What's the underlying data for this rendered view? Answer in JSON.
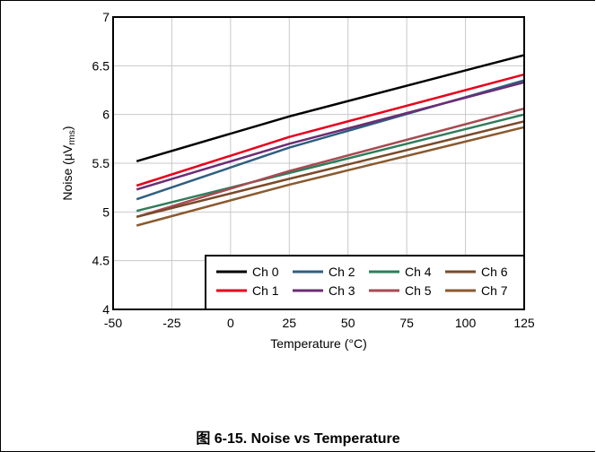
{
  "caption": "图 6-15. Noise vs Temperature",
  "chart_data": {
    "type": "line",
    "title": "",
    "xlabel": "Temperature (°C)",
    "ylabel_main": "Noise (",
    "ylabel_mu": "µ",
    "ylabel_V": "V",
    "ylabel_sub": "rms",
    "ylabel_end": ")",
    "xlim": [
      -50,
      125
    ],
    "ylim": [
      4,
      7
    ],
    "x_ticks": [
      -50,
      -25,
      0,
      25,
      50,
      75,
      100,
      125
    ],
    "y_ticks": [
      4,
      4.5,
      5,
      5.5,
      6,
      6.5,
      7
    ],
    "x_tick_labels": [
      "-50",
      "-25",
      "0",
      "25",
      "50",
      "75",
      "100",
      "125"
    ],
    "y_tick_labels": [
      "4",
      "4.5",
      "5",
      "5.5",
      "6",
      "6.5",
      "7"
    ],
    "grid": true,
    "legend_placement": "bottom-right",
    "series": [
      {
        "name": "Ch 0",
        "color": "#000000",
        "x": [
          -40,
          25,
          125
        ],
        "y": [
          5.52,
          5.98,
          6.61
        ]
      },
      {
        "name": "Ch 1",
        "color": "#e8001c",
        "x": [
          -40,
          25,
          125
        ],
        "y": [
          5.27,
          5.77,
          6.41
        ]
      },
      {
        "name": "Ch 2",
        "color": "#2f5f80",
        "x": [
          -40,
          25,
          125
        ],
        "y": [
          5.13,
          5.66,
          6.35
        ]
      },
      {
        "name": "Ch 3",
        "color": "#6b2d74",
        "x": [
          -40,
          25,
          125
        ],
        "y": [
          5.23,
          5.7,
          6.33
        ]
      },
      {
        "name": "Ch 4",
        "color": "#2e7d5a",
        "x": [
          -40,
          25,
          125
        ],
        "y": [
          5.01,
          5.4,
          6.0
        ]
      },
      {
        "name": "Ch 5",
        "color": "#a84a52",
        "x": [
          -40,
          25,
          125
        ],
        "y": [
          4.95,
          5.42,
          6.06
        ]
      },
      {
        "name": "Ch 6",
        "color": "#7a4a2a",
        "x": [
          -40,
          25,
          125
        ],
        "y": [
          4.95,
          5.34,
          5.93
        ]
      },
      {
        "name": "Ch 7",
        "color": "#8a5a2e",
        "x": [
          -40,
          25,
          125
        ],
        "y": [
          4.86,
          5.28,
          5.87
        ]
      }
    ]
  }
}
